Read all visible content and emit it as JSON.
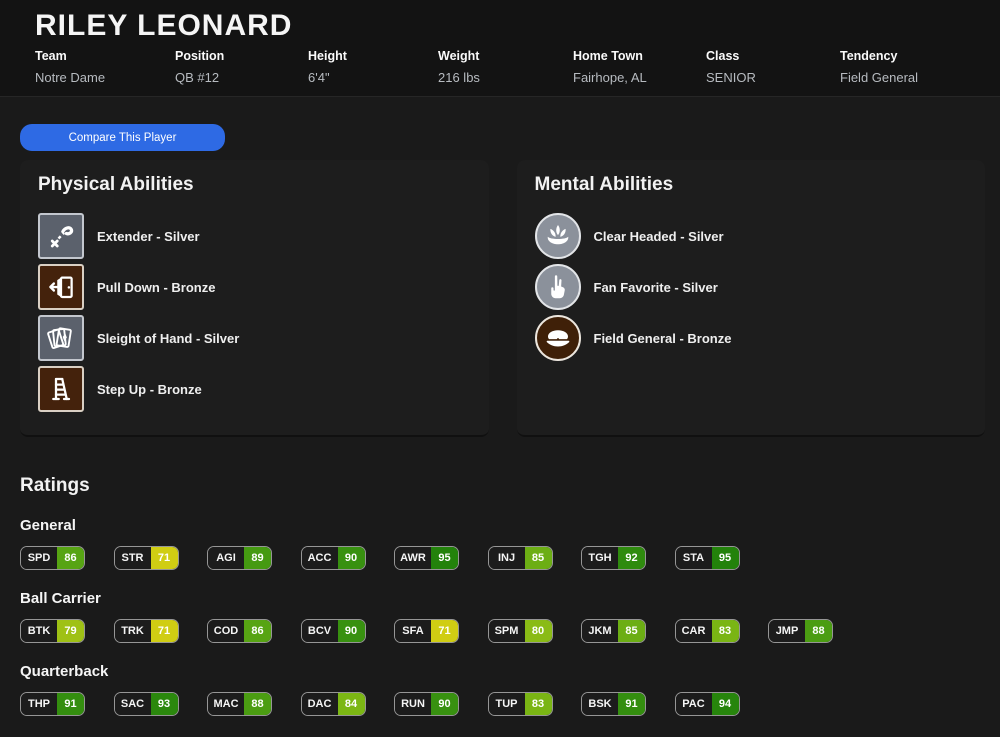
{
  "header": {
    "name": "RILEY LEONARD",
    "info": [
      {
        "label": "Team",
        "value": "Notre Dame"
      },
      {
        "label": "Position",
        "value": "QB #12"
      },
      {
        "label": "Height",
        "value": "6'4\""
      },
      {
        "label": "Weight",
        "value": "216 lbs"
      },
      {
        "label": "Home Town",
        "value": "Fairhope, AL"
      },
      {
        "label": "Class",
        "value": "SENIOR"
      },
      {
        "label": "Tendency",
        "value": "Field General"
      }
    ]
  },
  "compare_button": {
    "label": "Compare This Player",
    "color": "#2e6ae4"
  },
  "abilities": {
    "physical": {
      "title": "Physical Abilities",
      "items": [
        {
          "label": "Extender - Silver",
          "tier": "silver",
          "shape": "square",
          "icon": "route-extender-icon"
        },
        {
          "label": "Pull Down - Bronze",
          "tier": "bronze",
          "shape": "square",
          "icon": "door-icon"
        },
        {
          "label": "Sleight of Hand - Silver",
          "tier": "silver",
          "shape": "square",
          "icon": "playing-cards-icon"
        },
        {
          "label": "Step Up - Bronze",
          "tier": "bronze",
          "shape": "square",
          "icon": "ladder-icon"
        }
      ]
    },
    "mental": {
      "title": "Mental Abilities",
      "items": [
        {
          "label": "Clear Headed - Silver",
          "tier": "silver",
          "shape": "circle",
          "icon": "lotus-icon"
        },
        {
          "label": "Fan Favorite - Silver",
          "tier": "silver",
          "shape": "circle",
          "icon": "foam-finger-icon"
        },
        {
          "label": "Field General - Bronze",
          "tier": "bronze",
          "shape": "circle",
          "icon": "officer-cap-icon"
        }
      ]
    }
  },
  "ratings": {
    "title": "Ratings",
    "tier_colors": {
      "silver": "#8b919b",
      "bronze": "#44220c"
    },
    "groups": [
      {
        "name": "General",
        "stats": [
          {
            "abbr": "SPD",
            "value": 86,
            "color": "#57a413"
          },
          {
            "abbr": "STR",
            "value": 71,
            "color": "#d0cd13"
          },
          {
            "abbr": "AGI",
            "value": 89,
            "color": "#459a11"
          },
          {
            "abbr": "ACC",
            "value": 90,
            "color": "#389110"
          },
          {
            "abbr": "AWR",
            "value": 95,
            "color": "#23820b"
          },
          {
            "abbr": "INJ",
            "value": 85,
            "color": "#6cae14"
          },
          {
            "abbr": "TGH",
            "value": 92,
            "color": "#2f8b0e"
          },
          {
            "abbr": "STA",
            "value": 95,
            "color": "#23820b"
          }
        ]
      },
      {
        "name": "Ball Carrier",
        "stats": [
          {
            "abbr": "BTK",
            "value": 79,
            "color": "#9fc115"
          },
          {
            "abbr": "TRK",
            "value": 71,
            "color": "#d0cd13"
          },
          {
            "abbr": "COD",
            "value": 86,
            "color": "#57a413"
          },
          {
            "abbr": "BCV",
            "value": 90,
            "color": "#389110"
          },
          {
            "abbr": "SFA",
            "value": 71,
            "color": "#d0cd13"
          },
          {
            "abbr": "SPM",
            "value": 80,
            "color": "#8abb16"
          },
          {
            "abbr": "JKM",
            "value": 85,
            "color": "#6cae14"
          },
          {
            "abbr": "CAR",
            "value": 83,
            "color": "#7ab514"
          },
          {
            "abbr": "JMP",
            "value": 88,
            "color": "#4b9d12"
          }
        ]
      },
      {
        "name": "Quarterback",
        "stats": [
          {
            "abbr": "THP",
            "value": 91,
            "color": "#348e0f"
          },
          {
            "abbr": "SAC",
            "value": 93,
            "color": "#2b880d"
          },
          {
            "abbr": "MAC",
            "value": 88,
            "color": "#4b9d12"
          },
          {
            "abbr": "DAC",
            "value": 84,
            "color": "#7cb714"
          },
          {
            "abbr": "RUN",
            "value": 90,
            "color": "#389110"
          },
          {
            "abbr": "TUP",
            "value": 83,
            "color": "#7ab514"
          },
          {
            "abbr": "BSK",
            "value": 91,
            "color": "#348e0f"
          },
          {
            "abbr": "PAC",
            "value": 94,
            "color": "#27850c"
          }
        ]
      }
    ]
  }
}
